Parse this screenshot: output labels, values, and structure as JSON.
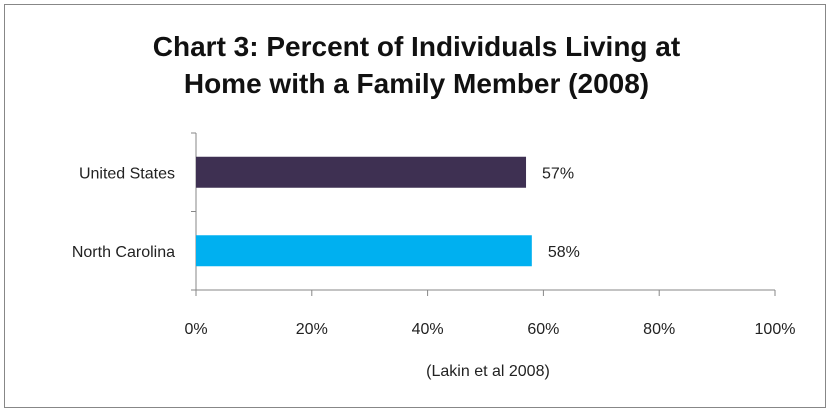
{
  "chart_data": {
    "type": "bar",
    "orientation": "horizontal",
    "title_lines": [
      "Chart 3:  Percent of Individuals Living at",
      "Home with a Family Member (2008)"
    ],
    "categories": [
      "United States",
      "North Carolina"
    ],
    "values": [
      57,
      58
    ],
    "value_labels": [
      "57%",
      "58%"
    ],
    "colors": [
      "#3e3052",
      "#00b0f0"
    ],
    "x_ticks": [
      "0%",
      "20%",
      "40%",
      "60%",
      "80%",
      "100%"
    ],
    "xlim": [
      0,
      100
    ],
    "xlabel": "(Lakin et al 2008)",
    "grid": false
  }
}
